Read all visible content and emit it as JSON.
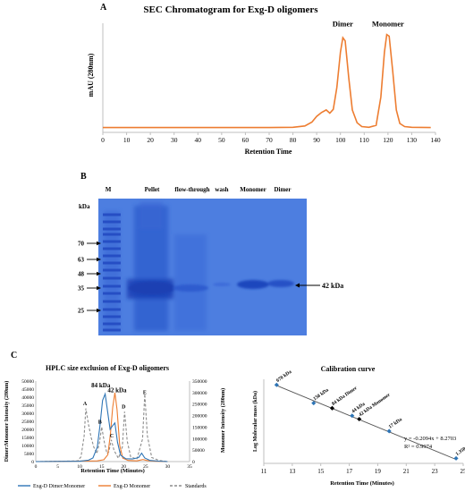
{
  "panels": {
    "a": "A",
    "b": "B",
    "c": "C"
  },
  "chart_data": [
    {
      "id": "sec",
      "type": "line",
      "title": "SEC Chromatogram for Exg-D oligomers",
      "xlabel": "Retention Time",
      "ylabel": "mAU (280nm)",
      "xlim": [
        0,
        140
      ],
      "xticks": [
        0,
        10,
        20,
        30,
        40,
        50,
        60,
        70,
        80,
        90,
        100,
        110,
        120,
        130,
        140
      ],
      "ylim": [
        0,
        340
      ],
      "color": "#ed7d31",
      "annotations": [
        {
          "text": "Dimer",
          "x": 101,
          "y": 330
        },
        {
          "text": "Monomer",
          "x": 120,
          "y": 330
        }
      ],
      "series": [
        {
          "points": [
            [
              0,
              15
            ],
            [
              70,
              15
            ],
            [
              80,
              16
            ],
            [
              85,
              20
            ],
            [
              88,
              32
            ],
            [
              90,
              50
            ],
            [
              92,
              62
            ],
            [
              94,
              70
            ],
            [
              95.5,
              60
            ],
            [
              97,
              72
            ],
            [
              98.5,
              140
            ],
            [
              100,
              250
            ],
            [
              101,
              295
            ],
            [
              102,
              285
            ],
            [
              103.5,
              170
            ],
            [
              105,
              70
            ],
            [
              107,
              30
            ],
            [
              109,
              18
            ],
            [
              112,
              16
            ],
            [
              115,
              22
            ],
            [
              117,
              110
            ],
            [
              118.5,
              250
            ],
            [
              119.5,
              305
            ],
            [
              120.5,
              300
            ],
            [
              122,
              190
            ],
            [
              123.5,
              70
            ],
            [
              125,
              28
            ],
            [
              127,
              18
            ],
            [
              130,
              16
            ],
            [
              138,
              15
            ]
          ]
        }
      ]
    },
    {
      "id": "hplc",
      "type": "line",
      "title": "HPLC size exclusion of Exg-D oligomers",
      "xlabel": "Retention Time (Minutes)",
      "ylabel": "Dimer:Monomer Intensity (280nm)",
      "y2label": "Monomer Intensity (280nm)",
      "xlim": [
        0,
        35
      ],
      "xticks": [
        0,
        5,
        10,
        15,
        20,
        25,
        30,
        35
      ],
      "ylim": [
        0,
        50000
      ],
      "yticks": [
        0,
        5000,
        10000,
        15000,
        20000,
        25000,
        30000,
        35000,
        40000,
        45000,
        50000
      ],
      "y2lim": [
        0,
        350000
      ],
      "y2ticks": [
        0,
        50000,
        100000,
        150000,
        200000,
        250000,
        300000,
        350000
      ],
      "annotations": [
        {
          "text": "84 kDa",
          "x": 14.8,
          "y": 46000
        },
        {
          "text": "42 kDa",
          "x": 18.5,
          "y": 43000
        },
        {
          "text": "A",
          "x": 11.2,
          "y": 35000
        },
        {
          "text": "B",
          "x": 14.6,
          "y": 23500
        },
        {
          "text": "C",
          "x": 17.3,
          "y": 15000
        },
        {
          "text": "D",
          "x": 20.0,
          "y": 33000
        },
        {
          "text": "E",
          "x": 24.8,
          "y": 42000
        }
      ],
      "series": [
        {
          "name": "Exg-D Dimer:Monomer",
          "axis": "left",
          "color": "#2e75b6",
          "dash": "",
          "points": [
            [
              0,
              0
            ],
            [
              10,
              200
            ],
            [
              12,
              900
            ],
            [
              13,
              2200
            ],
            [
              14,
              9000
            ],
            [
              14.6,
              22000
            ],
            [
              15.2,
              38000
            ],
            [
              15.8,
              42000
            ],
            [
              16.4,
              30000
            ],
            [
              16.9,
              20000
            ],
            [
              17.4,
              22000
            ],
            [
              18,
              24000
            ],
            [
              18.6,
              12000
            ],
            [
              19.3,
              4000
            ],
            [
              20.5,
              1800
            ],
            [
              22,
              1600
            ],
            [
              23.4,
              2500
            ],
            [
              24.1,
              5200
            ],
            [
              24.8,
              2200
            ],
            [
              26,
              700
            ],
            [
              28,
              300
            ],
            [
              30,
              0
            ]
          ]
        },
        {
          "name": "Exg-D Monomer",
          "axis": "right",
          "color": "#ed7d31",
          "dash": "",
          "points": [
            [
              0,
              0
            ],
            [
              14,
              3000
            ],
            [
              15.5,
              8000
            ],
            [
              16.4,
              30000
            ],
            [
              17,
              120000
            ],
            [
              17.5,
              235000
            ],
            [
              18,
              300000
            ],
            [
              18.5,
              225000
            ],
            [
              19.1,
              70000
            ],
            [
              19.8,
              15000
            ],
            [
              21,
              5000
            ],
            [
              23,
              3000
            ],
            [
              24.4,
              9000
            ],
            [
              25.2,
              5000
            ],
            [
              27,
              1500
            ],
            [
              30,
              0
            ]
          ]
        },
        {
          "name": "Standards",
          "axis": "left",
          "color": "#8c8c8c",
          "dash": "3,2",
          "points": [
            [
              0,
              0
            ],
            [
              9.5,
              400
            ],
            [
              10.3,
              3000
            ],
            [
              11,
              16000
            ],
            [
              11.4,
              33000
            ],
            [
              12,
              23000
            ],
            [
              12.6,
              15000
            ],
            [
              13.2,
              9000
            ],
            [
              13.9,
              5000
            ],
            [
              14.5,
              12000
            ],
            [
              15,
              21500
            ],
            [
              15.6,
              12000
            ],
            [
              16.2,
              5000
            ],
            [
              16.6,
              6000
            ],
            [
              17.2,
              13500
            ],
            [
              17.8,
              7000
            ],
            [
              18.8,
              2000
            ],
            [
              19.7,
              9000
            ],
            [
              20.2,
              31000
            ],
            [
              20.8,
              13000
            ],
            [
              21.6,
              3000
            ],
            [
              23,
              1500
            ],
            [
              24.3,
              14000
            ],
            [
              24.8,
              42000
            ],
            [
              25.4,
              16000
            ],
            [
              26.4,
              2500
            ],
            [
              28,
              800
            ],
            [
              30,
              0
            ]
          ]
        }
      ]
    },
    {
      "id": "calib",
      "type": "scatter",
      "title": "Calibration curve",
      "xlabel": "Retention Time (Minutes)",
      "ylabel": "Log Molecular mass (kDa)",
      "xlim": [
        11,
        25
      ],
      "xticks": [
        11,
        13,
        15,
        17,
        19,
        21,
        23,
        25
      ],
      "ylim": [
        3,
        6
      ],
      "equation": "y = -0.2094x + 8.2703",
      "r2": "R² = 0.9974",
      "trend": {
        "slope": -0.2094,
        "intercept": 8.2703,
        "x0": 11.9,
        "x1": 24.5
      },
      "points": [
        {
          "label": "670 kDa",
          "x": 11.9,
          "y": 5.8,
          "color": "#2e75b6"
        },
        {
          "label": "158 kDa",
          "x": 14.5,
          "y": 5.15,
          "color": "#2e75b6"
        },
        {
          "label": "84 kDa Dimer",
          "x": 15.8,
          "y": 4.97,
          "color": "#000000"
        },
        {
          "label": "44 kDa",
          "x": 17.2,
          "y": 4.7,
          "color": "#2e75b6"
        },
        {
          "label": "42 kDa Monomer",
          "x": 17.7,
          "y": 4.58,
          "color": "#000000"
        },
        {
          "label": "17 kDa",
          "x": 19.8,
          "y": 4.15,
          "color": "#2e75b6"
        },
        {
          "label": "1.350 kDa",
          "x": 24.5,
          "y": 3.18,
          "color": "#2e75b6"
        }
      ]
    }
  ],
  "gel": {
    "lane_labels": [
      "M",
      "Pellet",
      "flow-through",
      "wash",
      "Monomer",
      "Dimer"
    ],
    "kda_unit": "kDa",
    "markers": [
      "70",
      "63",
      "48",
      "35",
      "25"
    ],
    "band_label": "42 kDa",
    "band_color": "#2a55c9",
    "background": "#4d7ee0"
  }
}
